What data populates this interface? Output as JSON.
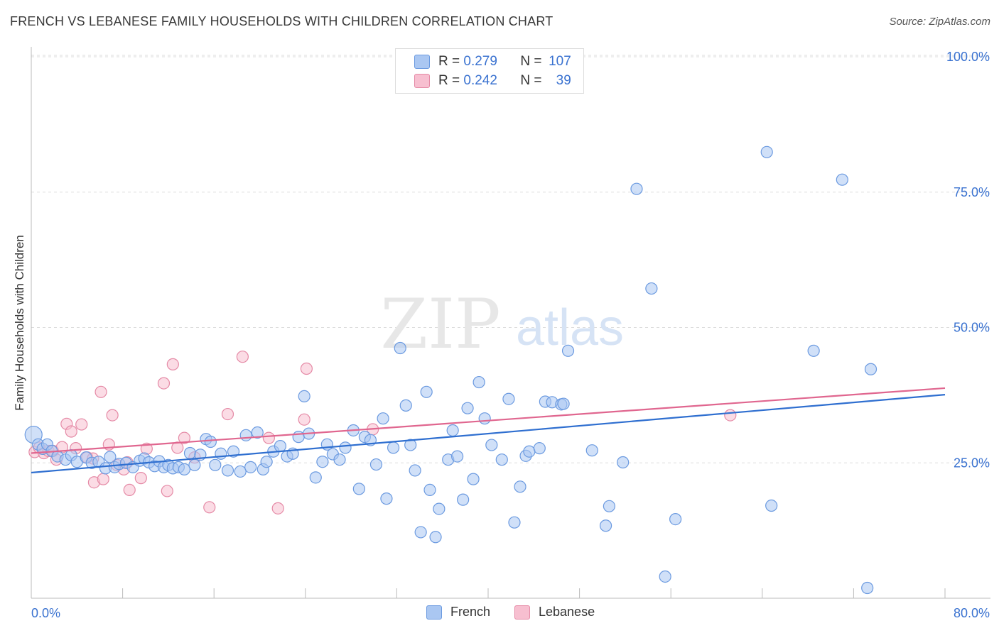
{
  "header": {
    "title": "FRENCH VS LEBANESE FAMILY HOUSEHOLDS WITH CHILDREN CORRELATION CHART",
    "source": "Source: ZipAtlas.com"
  },
  "watermark": {
    "zip": "ZIP",
    "atlas": "atlas"
  },
  "legend_top": {
    "rows": [
      {
        "r_label": "R =",
        "r_value": "0.279",
        "n_label": "N =",
        "n_value": "107"
      },
      {
        "r_label": "R =",
        "r_value": "0.242",
        "n_label": "N =",
        "n_value": "39"
      }
    ]
  },
  "legend_bottom": {
    "items": [
      "French",
      "Lebanese"
    ]
  },
  "colors": {
    "french_fill": "#aac7f2",
    "french_stroke": "#6b9ae0",
    "french_line": "#2f6fd0",
    "lebanese_fill": "#f7bfd0",
    "lebanese_stroke": "#e58aa6",
    "lebanese_line": "#e0668f",
    "tick_text": "#3a72d0",
    "grid": "#dddddd"
  },
  "chart_data": {
    "type": "scatter",
    "title": "FRENCH VS LEBANESE FAMILY HOUSEHOLDS WITH CHILDREN CORRELATION CHART",
    "xlabel": "",
    "ylabel": "Family Households with Children",
    "xlim": [
      0,
      80
    ],
    "ylim": [
      0,
      105
    ],
    "x_tick_labels": [
      "0.0%",
      "80.0%"
    ],
    "y_ticks": [
      25,
      50,
      75,
      100
    ],
    "y_tick_labels": [
      "25.0%",
      "50.0%",
      "75.0%",
      "100.0%"
    ],
    "grid": true,
    "legend_position": "bottom",
    "series": [
      {
        "name": "French",
        "r": 0.279,
        "n": 107,
        "trend": {
          "x": [
            0,
            80
          ],
          "y": [
            23.2,
            37.6
          ]
        },
        "points": [
          [
            0.2,
            30.2
          ],
          [
            0.6,
            28.4
          ],
          [
            1.0,
            27.6
          ],
          [
            1.4,
            28.4
          ],
          [
            1.8,
            27.2
          ],
          [
            2.3,
            26.2
          ],
          [
            3.0,
            25.6
          ],
          [
            3.5,
            26.4
          ],
          [
            4.0,
            25.2
          ],
          [
            4.8,
            26.0
          ],
          [
            5.3,
            25.0
          ],
          [
            5.9,
            25.2
          ],
          [
            6.5,
            24.0
          ],
          [
            6.9,
            26.1
          ],
          [
            7.3,
            24.2
          ],
          [
            7.7,
            24.8
          ],
          [
            8.3,
            25.0
          ],
          [
            8.9,
            24.2
          ],
          [
            9.5,
            25.4
          ],
          [
            9.9,
            25.8
          ],
          [
            10.3,
            25.1
          ],
          [
            10.8,
            24.4
          ],
          [
            11.2,
            25.3
          ],
          [
            11.6,
            24.2
          ],
          [
            12.0,
            24.6
          ],
          [
            12.4,
            24.0
          ],
          [
            12.9,
            24.2
          ],
          [
            13.4,
            23.8
          ],
          [
            13.9,
            26.8
          ],
          [
            14.3,
            24.6
          ],
          [
            14.8,
            26.5
          ],
          [
            15.3,
            29.4
          ],
          [
            15.7,
            28.9
          ],
          [
            16.1,
            24.6
          ],
          [
            16.6,
            26.7
          ],
          [
            17.2,
            23.6
          ],
          [
            17.7,
            27.1
          ],
          [
            18.3,
            23.4
          ],
          [
            18.8,
            30.1
          ],
          [
            19.2,
            24.2
          ],
          [
            19.8,
            30.6
          ],
          [
            20.3,
            23.8
          ],
          [
            20.6,
            25.2
          ],
          [
            21.2,
            27.1
          ],
          [
            21.8,
            28.1
          ],
          [
            22.4,
            26.2
          ],
          [
            22.9,
            26.7
          ],
          [
            23.4,
            29.8
          ],
          [
            23.9,
            37.3
          ],
          [
            24.3,
            30.4
          ],
          [
            24.9,
            22.3
          ],
          [
            25.5,
            25.2
          ],
          [
            25.9,
            28.4
          ],
          [
            26.4,
            26.6
          ],
          [
            27.0,
            25.6
          ],
          [
            27.5,
            27.8
          ],
          [
            28.2,
            31.0
          ],
          [
            28.7,
            20.2
          ],
          [
            29.2,
            29.8
          ],
          [
            29.7,
            29.2
          ],
          [
            30.2,
            24.7
          ],
          [
            30.8,
            33.2
          ],
          [
            31.1,
            18.4
          ],
          [
            31.7,
            27.8
          ],
          [
            32.3,
            46.2
          ],
          [
            32.8,
            35.6
          ],
          [
            33.2,
            28.3
          ],
          [
            33.6,
            23.6
          ],
          [
            34.1,
            12.2
          ],
          [
            34.6,
            38.1
          ],
          [
            34.9,
            20.0
          ],
          [
            35.4,
            11.3
          ],
          [
            35.7,
            16.5
          ],
          [
            36.5,
            25.6
          ],
          [
            36.9,
            31.0
          ],
          [
            37.3,
            26.2
          ],
          [
            37.8,
            18.2
          ],
          [
            38.2,
            35.1
          ],
          [
            38.7,
            22.0
          ],
          [
            39.2,
            39.9
          ],
          [
            39.7,
            33.2
          ],
          [
            40.3,
            28.3
          ],
          [
            41.2,
            25.6
          ],
          [
            41.8,
            36.8
          ],
          [
            42.3,
            14.0
          ],
          [
            42.8,
            20.6
          ],
          [
            43.3,
            26.3
          ],
          [
            43.6,
            27.1
          ],
          [
            44.5,
            27.7
          ],
          [
            45.0,
            36.3
          ],
          [
            45.6,
            36.2
          ],
          [
            46.4,
            35.8
          ],
          [
            46.6,
            35.9
          ],
          [
            47.0,
            45.7
          ],
          [
            49.1,
            27.3
          ],
          [
            50.3,
            13.4
          ],
          [
            50.6,
            17.0
          ],
          [
            51.8,
            25.1
          ],
          [
            53.0,
            75.6
          ],
          [
            54.3,
            57.2
          ],
          [
            55.5,
            4.0
          ],
          [
            56.4,
            14.6
          ],
          [
            64.4,
            82.4
          ],
          [
            64.8,
            17.1
          ],
          [
            68.5,
            45.7
          ],
          [
            71.0,
            77.3
          ],
          [
            73.2,
            1.9
          ],
          [
            73.5,
            42.3
          ]
        ]
      },
      {
        "name": "Lebanese",
        "r": 0.242,
        "n": 39,
        "trend": {
          "x": [
            0,
            80
          ],
          "y": [
            26.8,
            38.8
          ]
        },
        "points": [
          [
            0.3,
            27.0
          ],
          [
            0.7,
            27.8
          ],
          [
            1.1,
            26.8
          ],
          [
            1.5,
            27.2
          ],
          [
            1.9,
            27.2
          ],
          [
            2.2,
            25.6
          ],
          [
            2.7,
            27.9
          ],
          [
            3.1,
            32.2
          ],
          [
            3.5,
            30.8
          ],
          [
            3.9,
            27.7
          ],
          [
            4.4,
            32.1
          ],
          [
            4.9,
            26.0
          ],
          [
            5.4,
            25.8
          ],
          [
            5.5,
            21.4
          ],
          [
            6.1,
            38.1
          ],
          [
            6.3,
            22.0
          ],
          [
            6.8,
            28.4
          ],
          [
            7.1,
            33.8
          ],
          [
            7.5,
            24.6
          ],
          [
            8.1,
            23.8
          ],
          [
            8.4,
            25.1
          ],
          [
            8.6,
            20.0
          ],
          [
            9.6,
            22.2
          ],
          [
            10.1,
            27.6
          ],
          [
            11.6,
            39.7
          ],
          [
            11.9,
            19.8
          ],
          [
            12.4,
            43.2
          ],
          [
            12.8,
            27.8
          ],
          [
            13.4,
            29.6
          ],
          [
            14.3,
            26.0
          ],
          [
            15.6,
            16.8
          ],
          [
            17.2,
            34.0
          ],
          [
            18.5,
            44.6
          ],
          [
            20.8,
            29.6
          ],
          [
            21.6,
            16.6
          ],
          [
            23.9,
            33.0
          ],
          [
            24.1,
            42.4
          ],
          [
            29.9,
            31.2
          ],
          [
            61.2,
            33.8
          ]
        ]
      }
    ]
  }
}
